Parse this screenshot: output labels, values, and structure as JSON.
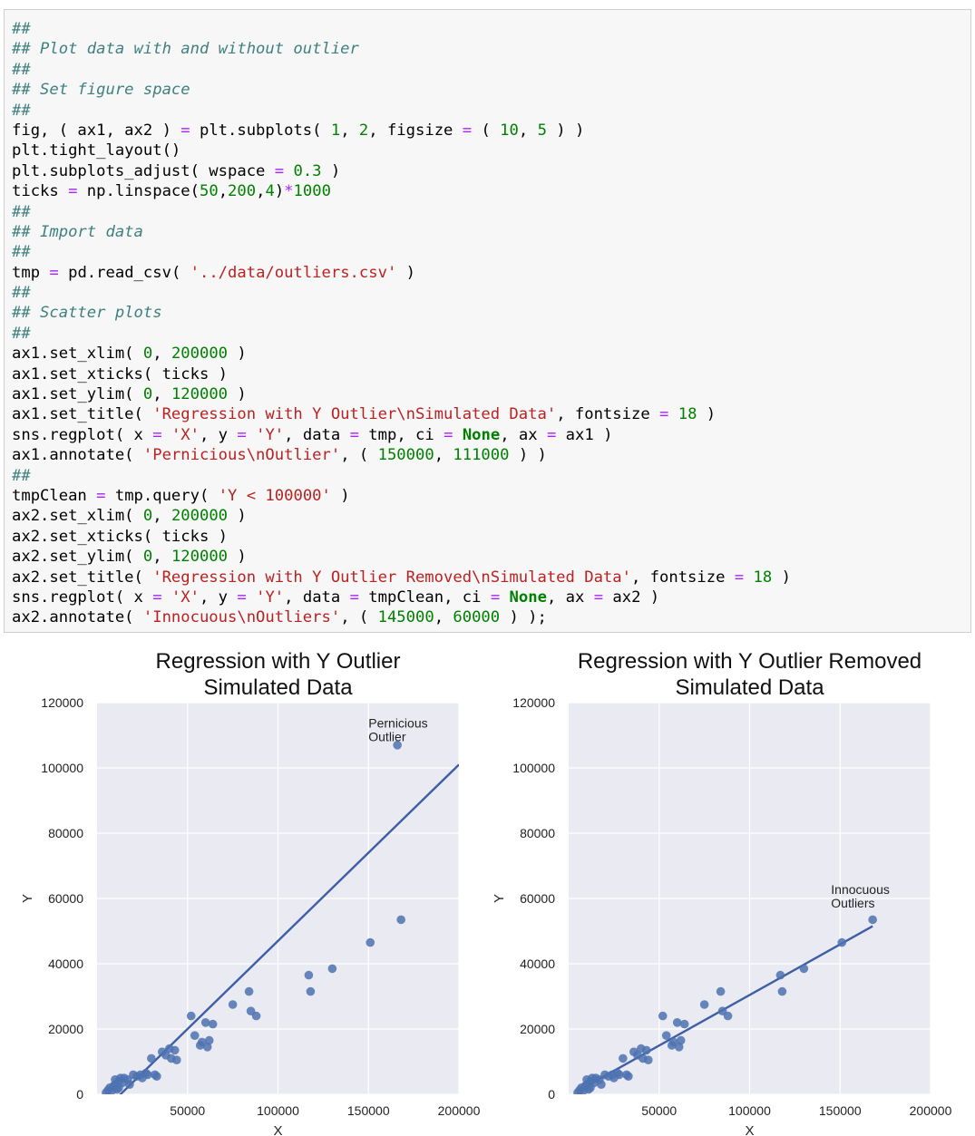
{
  "code_lines": [
    [
      [
        "cm",
        "##"
      ]
    ],
    [
      [
        "cm",
        "## Plot data with and without outlier"
      ]
    ],
    [
      [
        "cm",
        "##"
      ]
    ],
    [
      [
        "cm",
        "## Set figure space"
      ]
    ],
    [
      [
        "cm",
        "##"
      ]
    ],
    [
      [
        "tx",
        "fig, ( ax1, ax2 ) "
      ],
      [
        "op",
        "="
      ],
      [
        "tx",
        " plt.subplots( "
      ],
      [
        "nm",
        "1"
      ],
      [
        "tx",
        ", "
      ],
      [
        "nm",
        "2"
      ],
      [
        "tx",
        ", figsize "
      ],
      [
        "op",
        "="
      ],
      [
        "tx",
        " ( "
      ],
      [
        "nm",
        "10"
      ],
      [
        "tx",
        ", "
      ],
      [
        "nm",
        "5"
      ],
      [
        "tx",
        " ) )"
      ]
    ],
    [
      [
        "tx",
        "plt.tight_layout()"
      ]
    ],
    [
      [
        "tx",
        "plt.subplots_adjust( wspace "
      ],
      [
        "op",
        "="
      ],
      [
        "tx",
        " "
      ],
      [
        "nm",
        "0.3"
      ],
      [
        "tx",
        " )"
      ]
    ],
    [
      [
        "tx",
        "ticks "
      ],
      [
        "op",
        "="
      ],
      [
        "tx",
        " np.linspace("
      ],
      [
        "nm",
        "50"
      ],
      [
        "tx",
        ","
      ],
      [
        "nm",
        "200"
      ],
      [
        "tx",
        ","
      ],
      [
        "nm",
        "4"
      ],
      [
        "tx",
        ")"
      ],
      [
        "op",
        "*"
      ],
      [
        "nm",
        "1000"
      ]
    ],
    [
      [
        "cm",
        "##"
      ]
    ],
    [
      [
        "cm",
        "## Import data"
      ]
    ],
    [
      [
        "cm",
        "##"
      ]
    ],
    [
      [
        "tx",
        "tmp "
      ],
      [
        "op",
        "="
      ],
      [
        "tx",
        " pd.read_csv( "
      ],
      [
        "st",
        "'../data/outliers.csv'"
      ],
      [
        "tx",
        " )"
      ]
    ],
    [
      [
        "cm",
        "##"
      ]
    ],
    [
      [
        "cm",
        "## Scatter plots"
      ]
    ],
    [
      [
        "cm",
        "##"
      ]
    ],
    [
      [
        "tx",
        "ax1.set_xlim( "
      ],
      [
        "nm",
        "0"
      ],
      [
        "tx",
        ", "
      ],
      [
        "nm",
        "200000"
      ],
      [
        "tx",
        " )"
      ]
    ],
    [
      [
        "tx",
        "ax1.set_xticks( ticks )"
      ]
    ],
    [
      [
        "tx",
        "ax1.set_ylim( "
      ],
      [
        "nm",
        "0"
      ],
      [
        "tx",
        ", "
      ],
      [
        "nm",
        "120000"
      ],
      [
        "tx",
        " )"
      ]
    ],
    [
      [
        "tx",
        "ax1.set_title( "
      ],
      [
        "st",
        "'Regression with Y Outlier\\nSimulated Data'"
      ],
      [
        "tx",
        ", fontsize "
      ],
      [
        "op",
        "="
      ],
      [
        "tx",
        " "
      ],
      [
        "nm",
        "18"
      ],
      [
        "tx",
        " )"
      ]
    ],
    [
      [
        "tx",
        "sns.regplot( x "
      ],
      [
        "op",
        "="
      ],
      [
        "tx",
        " "
      ],
      [
        "st",
        "'X'"
      ],
      [
        "tx",
        ", y "
      ],
      [
        "op",
        "="
      ],
      [
        "tx",
        " "
      ],
      [
        "st",
        "'Y'"
      ],
      [
        "tx",
        ", data "
      ],
      [
        "op",
        "="
      ],
      [
        "tx",
        " tmp, ci "
      ],
      [
        "op",
        "="
      ],
      [
        "tx",
        " "
      ],
      [
        "kw",
        "None"
      ],
      [
        "tx",
        ", ax "
      ],
      [
        "op",
        "="
      ],
      [
        "tx",
        " ax1 )"
      ]
    ],
    [
      [
        "tx",
        "ax1.annotate( "
      ],
      [
        "st",
        "'Pernicious\\nOutlier'"
      ],
      [
        "tx",
        ", ( "
      ],
      [
        "nm",
        "150000"
      ],
      [
        "tx",
        ", "
      ],
      [
        "nm",
        "111000"
      ],
      [
        "tx",
        " ) )"
      ]
    ],
    [
      [
        "cm",
        "##"
      ]
    ],
    [
      [
        "tx",
        "tmpClean "
      ],
      [
        "op",
        "="
      ],
      [
        "tx",
        " tmp.query( "
      ],
      [
        "st",
        "'Y < 100000'"
      ],
      [
        "tx",
        " )"
      ]
    ],
    [
      [
        "tx",
        "ax2.set_xlim( "
      ],
      [
        "nm",
        "0"
      ],
      [
        "tx",
        ", "
      ],
      [
        "nm",
        "200000"
      ],
      [
        "tx",
        " )"
      ]
    ],
    [
      [
        "tx",
        "ax2.set_xticks( ticks )"
      ]
    ],
    [
      [
        "tx",
        "ax2.set_ylim( "
      ],
      [
        "nm",
        "0"
      ],
      [
        "tx",
        ", "
      ],
      [
        "nm",
        "120000"
      ],
      [
        "tx",
        " )"
      ]
    ],
    [
      [
        "tx",
        "ax2.set_title( "
      ],
      [
        "st",
        "'Regression with Y Outlier Removed\\nSimulated Data'"
      ],
      [
        "tx",
        ", fontsize "
      ],
      [
        "op",
        "="
      ],
      [
        "tx",
        " "
      ],
      [
        "nm",
        "18"
      ],
      [
        "tx",
        " )"
      ]
    ],
    [
      [
        "tx",
        "sns.regplot( x "
      ],
      [
        "op",
        "="
      ],
      [
        "tx",
        " "
      ],
      [
        "st",
        "'X'"
      ],
      [
        "tx",
        ", y "
      ],
      [
        "op",
        "="
      ],
      [
        "tx",
        " "
      ],
      [
        "st",
        "'Y'"
      ],
      [
        "tx",
        ", data "
      ],
      [
        "op",
        "="
      ],
      [
        "tx",
        " tmpClean, ci "
      ],
      [
        "op",
        "="
      ],
      [
        "tx",
        " "
      ],
      [
        "kw",
        "None"
      ],
      [
        "tx",
        ", ax "
      ],
      [
        "op",
        "="
      ],
      [
        "tx",
        " ax2 )"
      ]
    ],
    [
      [
        "tx",
        "ax2.annotate( "
      ],
      [
        "st",
        "'Innocuous\\nOutliers'"
      ],
      [
        "tx",
        ", ( "
      ],
      [
        "nm",
        "145000"
      ],
      [
        "tx",
        ", "
      ],
      [
        "nm",
        "60000"
      ],
      [
        "tx",
        " ) );"
      ]
    ]
  ],
  "colors": {
    "comment": "#408080",
    "string": "#ba2121",
    "number": "#008000",
    "operator": "#aa22ff",
    "keyword": "#008000",
    "plot_bg": "#eaeaf2",
    "point": "#4c72b0",
    "line": "#3e5ea5"
  },
  "chart_data": [
    {
      "type": "scatter",
      "title": [
        "Regression with Y Outlier",
        "Simulated Data"
      ],
      "xlabel": "X",
      "ylabel": "Y",
      "xlim": [
        0,
        200000
      ],
      "ylim": [
        0,
        120000
      ],
      "xticks": [
        50000,
        100000,
        150000,
        200000
      ],
      "xtick_labels": [
        "50000",
        "100000",
        "150000",
        "200000"
      ],
      "yticks": [
        0,
        20000,
        40000,
        60000,
        80000,
        100000,
        120000
      ],
      "ytick_labels": [
        "0",
        "20000",
        "40000",
        "60000",
        "80000",
        "100000",
        "120000"
      ],
      "grid": true,
      "annotation": {
        "text": [
          "Pernicious",
          "Outlier"
        ],
        "x": 150000,
        "y": 111000
      },
      "regression_line": {
        "x": [
          0,
          200000
        ],
        "y": [
          -7000,
          101000
        ]
      },
      "x": [
        5000,
        6000,
        7000,
        8000,
        9000,
        10000,
        11000,
        12000,
        13000,
        14000,
        10000,
        12000,
        15000,
        17000,
        18000,
        20000,
        22000,
        24000,
        25000,
        27000,
        28000,
        30000,
        32000,
        33000,
        36000,
        38000,
        40000,
        41000,
        43000,
        44000,
        52000,
        54000,
        57000,
        58000,
        60000,
        61000,
        62000,
        64000,
        75000,
        84000,
        85000,
        88000,
        117000,
        118000,
        130000,
        151000,
        166000,
        168000
      ],
      "y": [
        500,
        1200,
        2000,
        1000,
        2500,
        3000,
        1500,
        2000,
        5000,
        3500,
        4500,
        4000,
        5000,
        4500,
        3000,
        6000,
        5500,
        6000,
        5000,
        6500,
        6000,
        11000,
        6000,
        5500,
        13000,
        12000,
        14000,
        11000,
        13500,
        10500,
        24000,
        18000,
        15000,
        16000,
        22000,
        14500,
        16500,
        21500,
        27500,
        31500,
        25500,
        24000,
        36500,
        31500,
        38500,
        46500,
        107000,
        53500
      ]
    },
    {
      "type": "scatter",
      "title": [
        "Regression with Y Outlier Removed",
        "Simulated Data"
      ],
      "xlabel": "X",
      "ylabel": "Y",
      "xlim": [
        0,
        200000
      ],
      "ylim": [
        0,
        120000
      ],
      "xticks": [
        50000,
        100000,
        150000,
        200000
      ],
      "xtick_labels": [
        "50000",
        "100000",
        "150000",
        "200000"
      ],
      "yticks": [
        0,
        20000,
        40000,
        60000,
        80000,
        100000,
        120000
      ],
      "ytick_labels": [
        "0",
        "20000",
        "40000",
        "60000",
        "80000",
        "100000",
        "120000"
      ],
      "grid": true,
      "annotation": {
        "text": [
          "Innocuous",
          "Outliers"
        ],
        "x": 145000,
        "y": 60000
      },
      "regression_line": {
        "x": [
          5000,
          168000
        ],
        "y": [
          1000,
          51500
        ]
      },
      "x": [
        5000,
        6000,
        7000,
        8000,
        9000,
        10000,
        11000,
        12000,
        13000,
        14000,
        10000,
        12000,
        15000,
        17000,
        18000,
        20000,
        22000,
        24000,
        25000,
        27000,
        28000,
        30000,
        32000,
        33000,
        36000,
        38000,
        40000,
        41000,
        43000,
        44000,
        52000,
        54000,
        57000,
        58000,
        60000,
        61000,
        62000,
        64000,
        75000,
        84000,
        85000,
        88000,
        117000,
        118000,
        130000,
        151000,
        168000
      ],
      "y": [
        500,
        1200,
        2000,
        1000,
        2500,
        3000,
        1500,
        2000,
        5000,
        3500,
        4500,
        4000,
        5000,
        4500,
        3000,
        6000,
        5500,
        6000,
        5000,
        6500,
        6000,
        11000,
        6000,
        5500,
        13000,
        12000,
        14000,
        11000,
        13500,
        10500,
        24000,
        18000,
        15000,
        16000,
        22000,
        14500,
        16500,
        21500,
        27500,
        31500,
        25500,
        24000,
        36500,
        31500,
        38500,
        46500,
        53500
      ]
    }
  ]
}
